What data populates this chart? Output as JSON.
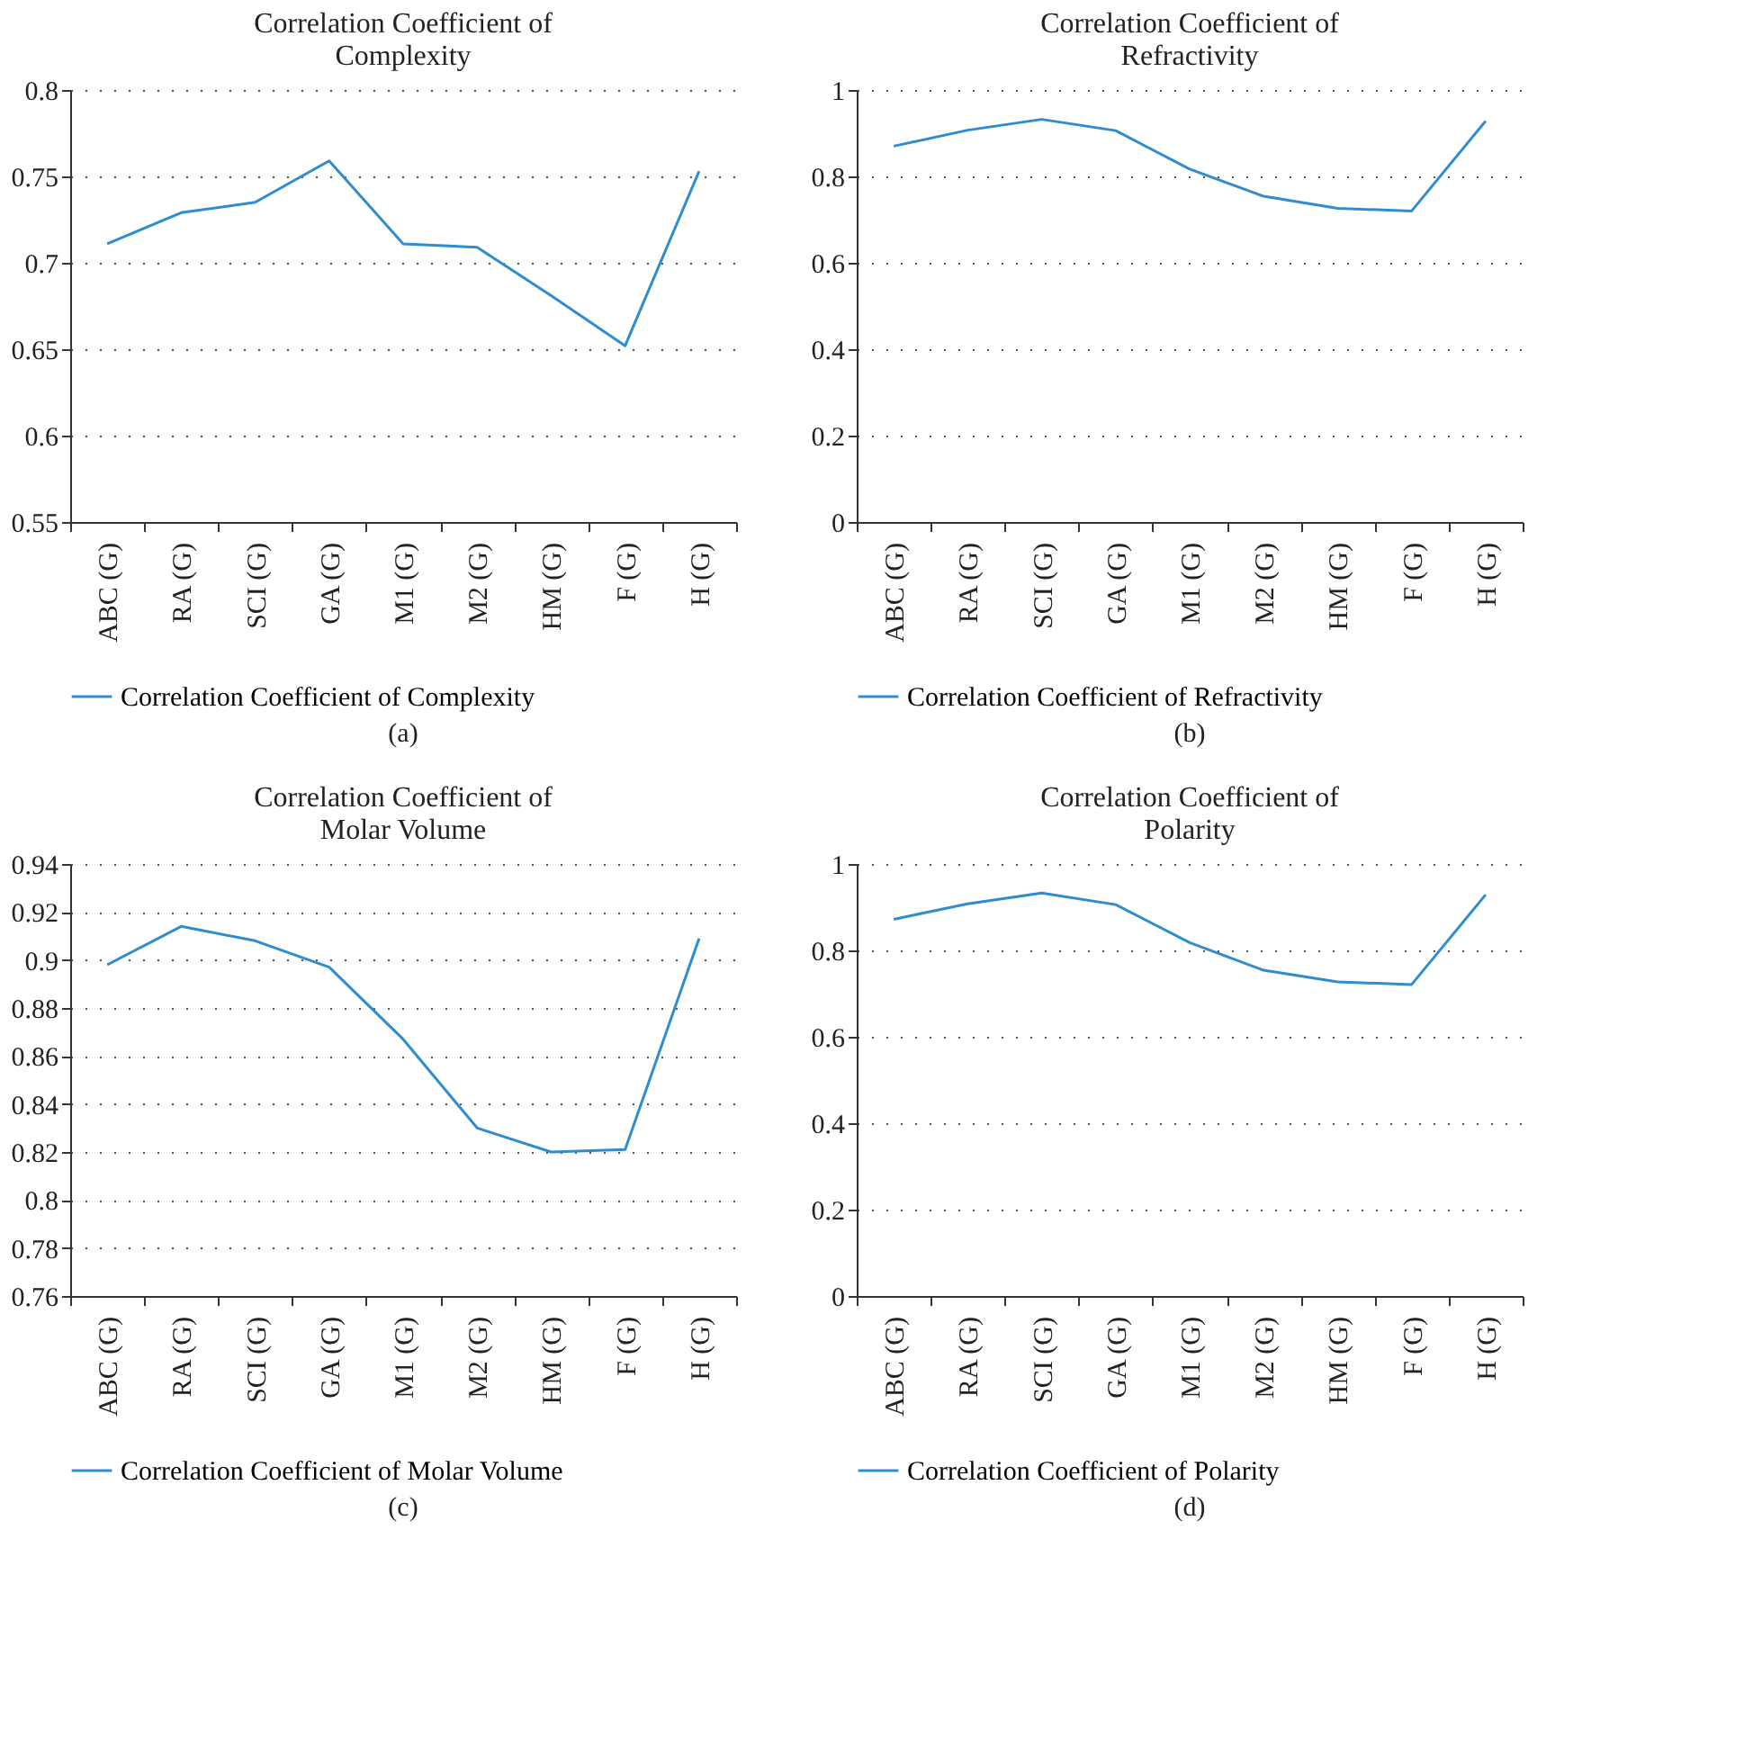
{
  "chart_data": [
    {
      "type": "line",
      "title": "Correlation Coefficient of Complexity",
      "categories": [
        "ABC (G)",
        "RA (G)",
        "SCI (G)",
        "GA (G)",
        "M1 (G)",
        "M2 (G)",
        "HM (G)",
        "F (G)",
        "H (G)"
      ],
      "series": [
        {
          "name": "Correlation Coefficient of Complexity",
          "color": "#2f8ccf",
          "values": [
            0.711,
            0.729,
            0.735,
            0.759,
            0.711,
            0.709,
            0.681,
            0.652,
            0.753
          ]
        }
      ],
      "ylim": [
        0.55,
        0.8
      ],
      "yticks": [
        0.55,
        0.6,
        0.65,
        0.7,
        0.75,
        0.8
      ],
      "grid": "y",
      "legend": "bottom",
      "annotations": [
        "(a)"
      ]
    },
    {
      "type": "line",
      "title": "Correlation Coefficient of Refractivity",
      "categories": [
        "ABC (G)",
        "RA (G)",
        "SCI (G)",
        "GA (G)",
        "M1 (G)",
        "M2 (G)",
        "HM (G)",
        "F (G)",
        "H (G)"
      ],
      "series": [
        {
          "name": "Correlation Coefficient of Refractivity",
          "color": "#2f8ccf",
          "values": [
            0.87,
            0.907,
            0.932,
            0.906,
            0.817,
            0.754,
            0.726,
            0.72,
            0.928
          ]
        }
      ],
      "ylim": [
        0,
        1
      ],
      "yticks": [
        0,
        0.2,
        0.4,
        0.6,
        0.8,
        1
      ],
      "grid": "y",
      "legend": "bottom",
      "annotations": [
        "(b)"
      ]
    },
    {
      "type": "line",
      "title": "Correlation Coefficient of Molar Volume",
      "categories": [
        "ABC (G)",
        "RA (G)",
        "SCI (G)",
        "GA (G)",
        "M1 (G)",
        "M2 (G)",
        "HM (G)",
        "F (G)",
        "H (G)"
      ],
      "series": [
        {
          "name": "Correlation Coefficient of Molar Volume",
          "color": "#2f8ccf",
          "values": [
            0.898,
            0.914,
            0.908,
            0.897,
            0.867,
            0.83,
            0.82,
            0.821,
            0.909
          ]
        }
      ],
      "ylim": [
        0.76,
        0.94
      ],
      "yticks": [
        0.76,
        0.78,
        0.8,
        0.82,
        0.84,
        0.86,
        0.88,
        0.9,
        0.92,
        0.94
      ],
      "grid": "y",
      "legend": "bottom",
      "annotations": [
        "(c)"
      ]
    },
    {
      "type": "line",
      "title": "Correlation Coefficient of Polarity",
      "categories": [
        "ABC (G)",
        "RA (G)",
        "SCI (G)",
        "GA (G)",
        "M1 (G)",
        "M2 (G)",
        "HM (G)",
        "F (G)",
        "H (G)"
      ],
      "series": [
        {
          "name": "Correlation Coefficient of Polarity",
          "color": "#2f8ccf",
          "values": [
            0.872,
            0.908,
            0.933,
            0.906,
            0.818,
            0.754,
            0.727,
            0.721,
            0.929
          ]
        }
      ],
      "ylim": [
        0,
        1
      ],
      "yticks": [
        0,
        0.2,
        0.4,
        0.6,
        0.8,
        1
      ],
      "grid": "y",
      "legend": "bottom",
      "annotations": [
        "(d)"
      ]
    }
  ]
}
